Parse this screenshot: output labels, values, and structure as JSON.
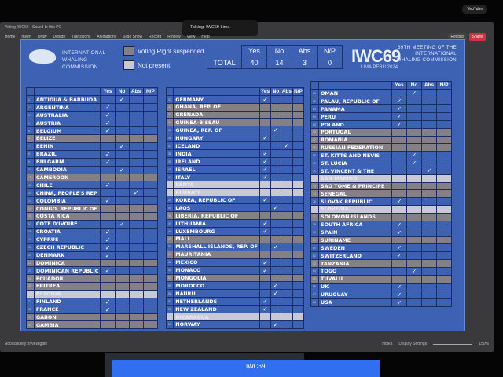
{
  "window": {
    "title": "Voting IWC69 - Saved to this PC",
    "menu": [
      "Home",
      "Insert",
      "Draw",
      "Design",
      "Transitions",
      "Animations",
      "Slide Show",
      "Record",
      "Review",
      "View",
      "Help"
    ],
    "call_banner": "Talking: IWC69 Lima",
    "youtube": "YouTube",
    "record": "Record",
    "share": "Share",
    "status_left": "Accessibility: Investigate",
    "notes": "Notes",
    "display_settings": "Display Settings",
    "zoom": "150%"
  },
  "slide": {
    "org": "INTERNATIONAL WHALING COMMISSION",
    "legend": {
      "suspended": "Voting Right suspended",
      "absent": "Not present"
    },
    "colors": {
      "slide": "#3d62b4",
      "suspended": "#857f86",
      "absent": "#c9c9d6"
    },
    "totals": {
      "label": "TOTAL",
      "headers": [
        "Yes",
        "No",
        "Abs",
        "N/P"
      ],
      "values": [
        "40",
        "14",
        "3",
        "0"
      ]
    },
    "logo": "IWC69",
    "logo_sub": "LIMA PERU 2024",
    "meeting": "69TH MEETING OF THE INTERNATIONAL WHALING COMMISSION",
    "vote_headers": [
      "Yes",
      "No",
      "Abs",
      "N/P"
    ],
    "check": "✓",
    "columns": [
      [
        [
          "1",
          "ANTIGUA & BARBUDA",
          "no",
          "n"
        ],
        [
          "2",
          "ARGENTINA",
          "yes",
          "n"
        ],
        [
          "3",
          "AUSTRALIA",
          "yes",
          "n"
        ],
        [
          "4",
          "AUSTRIA",
          "yes",
          "n"
        ],
        [
          "5",
          "BELGIUM",
          "yes",
          "n"
        ],
        [
          "6",
          "BELIZE",
          "",
          "s"
        ],
        [
          "7",
          "BENIN",
          "no",
          "n"
        ],
        [
          "8",
          "BRAZIL",
          "yes",
          "n"
        ],
        [
          "9",
          "BULGARIA",
          "yes",
          "n"
        ],
        [
          "10",
          "CAMBODIA",
          "no",
          "n"
        ],
        [
          "11",
          "CAMEROON",
          "",
          "s"
        ],
        [
          "12",
          "CHILE",
          "yes",
          "n"
        ],
        [
          "13",
          "CHINA, PEOPLE'S REP",
          "abs",
          "n"
        ],
        [
          "14",
          "COLOMBIA",
          "yes",
          "n"
        ],
        [
          "15",
          "CONGO, REPUBLIC OF",
          "",
          "s"
        ],
        [
          "16",
          "COSTA RICA",
          "",
          "s"
        ],
        [
          "17",
          "CÔTE D'IVOIRE",
          "no",
          "n"
        ],
        [
          "18",
          "CROATIA",
          "yes",
          "n"
        ],
        [
          "19",
          "CYPRUS",
          "yes",
          "n"
        ],
        [
          "20",
          "CZECH REPUBLIC",
          "yes",
          "n"
        ],
        [
          "21",
          "DENMARK",
          "yes",
          "n"
        ],
        [
          "22",
          "DOMINICA",
          "",
          "s"
        ],
        [
          "23",
          "DOMINICAN REPUBLIC",
          "yes",
          "n"
        ],
        [
          "24",
          "ECUADOR",
          "",
          "s"
        ],
        [
          "25",
          "ERITREA",
          "",
          "s"
        ],
        [
          "26",
          "ESTONIA",
          "",
          "a"
        ],
        [
          "27",
          "FINLAND",
          "yes",
          "n"
        ],
        [
          "28",
          "FRANCE",
          "yes",
          "n"
        ],
        [
          "29",
          "GABON",
          "",
          "s"
        ],
        [
          "30",
          "GAMBIA",
          "",
          "s"
        ]
      ],
      [
        [
          "31",
          "GERMANY",
          "yes",
          "n"
        ],
        [
          "32",
          "GHANA, REP. OF",
          "",
          "s"
        ],
        [
          "33",
          "GRENADA",
          "",
          "s"
        ],
        [
          "34",
          "GUINEA-BISSAU",
          "",
          "s"
        ],
        [
          "35",
          "GUINEA, REP. OF",
          "no",
          "n"
        ],
        [
          "36",
          "HUNGARY",
          "yes",
          "n"
        ],
        [
          "37",
          "ICELAND",
          "abs",
          "n"
        ],
        [
          "38",
          "INDIA",
          "yes",
          "n"
        ],
        [
          "39",
          "IRELAND",
          "yes",
          "n"
        ],
        [
          "40",
          "ISRAEL",
          "yes",
          "n"
        ],
        [
          "41",
          "ITALY",
          "yes",
          "n"
        ],
        [
          "42",
          "KENYA",
          "",
          "a"
        ],
        [
          "43",
          "KIRIBATI",
          "",
          "a"
        ],
        [
          "44",
          "KOREA, REPUBLIC OF",
          "yes",
          "n"
        ],
        [
          "45",
          "LAOS",
          "no",
          "n"
        ],
        [
          "46",
          "LIBERIA, REPUBLIC OF",
          "",
          "s"
        ],
        [
          "47",
          "LITHUANIA",
          "yes",
          "n"
        ],
        [
          "48",
          "LUXEMBOURG",
          "yes",
          "n"
        ],
        [
          "49",
          "MALI",
          "",
          "s"
        ],
        [
          "50",
          "MARSHALL ISLANDS, REP. OF",
          "no",
          "n"
        ],
        [
          "51",
          "MAURITANIA",
          "",
          "s"
        ],
        [
          "52",
          "MEXICO",
          "yes",
          "n"
        ],
        [
          "53",
          "MONACO",
          "yes",
          "n"
        ],
        [
          "54",
          "MONGOLIA",
          "",
          "s"
        ],
        [
          "55",
          "MOROCCO",
          "no",
          "n"
        ],
        [
          "56",
          "NAURU",
          "no",
          "n"
        ],
        [
          "57",
          "NETHERLANDS",
          "yes",
          "n"
        ],
        [
          "58",
          "NEW ZEALAND",
          "yes",
          "n"
        ],
        [
          "59",
          "NICARAGUA",
          "",
          "a"
        ],
        [
          "60",
          "NORWAY",
          "no",
          "n"
        ]
      ],
      [
        [
          "61",
          "OMAN",
          "no",
          "n"
        ],
        [
          "62",
          "PALAU, REPUBLIC OF",
          "yes",
          "n"
        ],
        [
          "63",
          "PANAMA",
          "yes",
          "n"
        ],
        [
          "64",
          "PERU",
          "yes",
          "n"
        ],
        [
          "65",
          "POLAND",
          "yes",
          "n"
        ],
        [
          "66",
          "PORTUGAL",
          "",
          "s"
        ],
        [
          "67",
          "ROMANIA",
          "",
          "s"
        ],
        [
          "68",
          "RUSSIAN FEDERATION",
          "",
          "s"
        ],
        [
          "69",
          "ST. KITTS AND NEVIS",
          "no",
          "n"
        ],
        [
          "70",
          "ST. LUCIA",
          "no",
          "n"
        ],
        [
          "71",
          "ST. VINCENT & THE",
          "abs",
          "n"
        ],
        [
          "72",
          "SAN MARINO",
          "",
          "a"
        ],
        [
          "73",
          "SAO TOME & PRINCIPE",
          "",
          "s"
        ],
        [
          "74",
          "SENEGAL",
          "",
          "s"
        ],
        [
          "75",
          "SLOVAK REPUBLIC",
          "yes",
          "n"
        ],
        [
          "76",
          "SLOVENIA",
          "",
          "a"
        ],
        [
          "77",
          "SOLOMON ISLANDS",
          "",
          "s"
        ],
        [
          "78",
          "SOUTH AFRICA",
          "yes",
          "n"
        ],
        [
          "79",
          "SPAIN",
          "yes",
          "n"
        ],
        [
          "80",
          "SURINAME",
          "",
          "s"
        ],
        [
          "81",
          "SWEDEN",
          "yes",
          "n"
        ],
        [
          "82",
          "SWITZERLAND",
          "yes",
          "n"
        ],
        [
          "83",
          "TANZANIA",
          "",
          "s"
        ],
        [
          "84",
          "TOGO",
          "no",
          "n"
        ],
        [
          "85",
          "TUVALU",
          "",
          "s"
        ],
        [
          "86",
          "UK",
          "yes",
          "n"
        ],
        [
          "87",
          "URUGUAY",
          "yes",
          "n"
        ],
        [
          "88",
          "USA",
          "yes",
          "n"
        ]
      ]
    ]
  }
}
